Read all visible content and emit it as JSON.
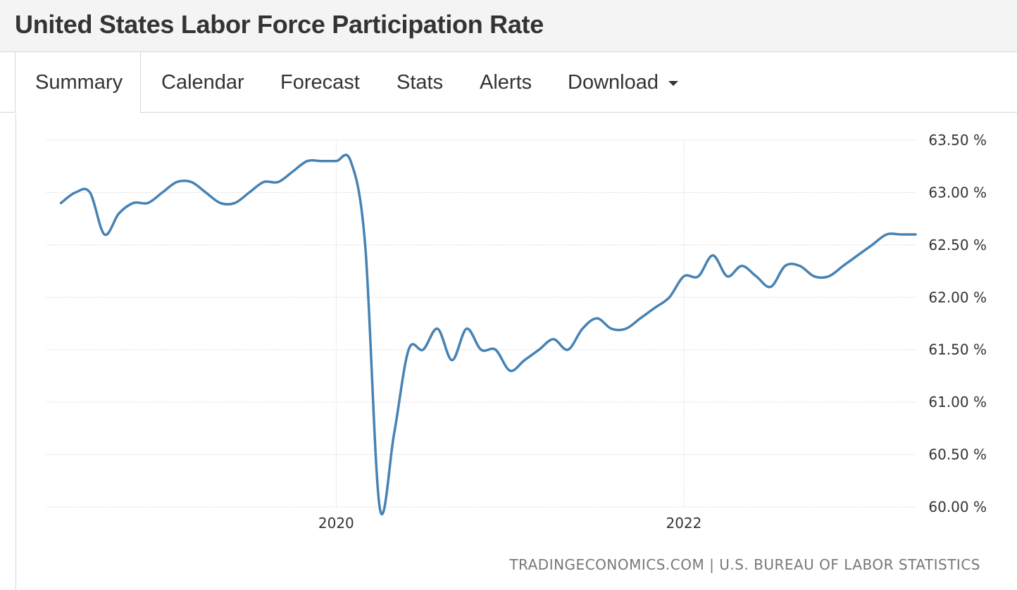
{
  "header": {
    "title": "United States Labor Force Participation Rate"
  },
  "tabs": [
    {
      "label": "Summary",
      "active": true
    },
    {
      "label": "Calendar"
    },
    {
      "label": "Forecast"
    },
    {
      "label": "Stats"
    },
    {
      "label": "Alerts"
    },
    {
      "label": "Download",
      "has_dropdown": true
    }
  ],
  "colors": {
    "line": "#4682b4",
    "grid": "#c8c8c8",
    "text": "#333333"
  },
  "chart_data": {
    "type": "line",
    "title": "",
    "xlabel": "",
    "ylabel": "",
    "ylim": [
      60.0,
      63.5
    ],
    "yticks": [
      60.0,
      60.5,
      61.0,
      61.5,
      62.0,
      62.5,
      63.0,
      63.5
    ],
    "ytick_labels": [
      "60.00 %",
      "60.50 %",
      "61.00 %",
      "61.50 %",
      "62.00 %",
      "62.50 %",
      "63.00 %",
      "63.50 %"
    ],
    "xlim": [
      "2018-05",
      "2023-05"
    ],
    "xticks": [
      "2020-01",
      "2022-01"
    ],
    "xtick_labels": [
      "2020",
      "2022"
    ],
    "grid": true,
    "series": [
      {
        "name": "",
        "x": [
          "2018-06",
          "2018-07",
          "2018-08",
          "2018-09",
          "2018-10",
          "2018-11",
          "2018-12",
          "2019-01",
          "2019-02",
          "2019-03",
          "2019-04",
          "2019-05",
          "2019-06",
          "2019-07",
          "2019-08",
          "2019-09",
          "2019-10",
          "2019-11",
          "2019-12",
          "2020-01",
          "2020-02",
          "2020-03",
          "2020-04",
          "2020-05",
          "2020-06",
          "2020-07",
          "2020-08",
          "2020-09",
          "2020-10",
          "2020-11",
          "2020-12",
          "2021-01",
          "2021-02",
          "2021-03",
          "2021-04",
          "2021-05",
          "2021-06",
          "2021-07",
          "2021-08",
          "2021-09",
          "2021-10",
          "2021-11",
          "2021-12",
          "2022-01",
          "2022-02",
          "2022-03",
          "2022-04",
          "2022-05",
          "2022-06",
          "2022-07",
          "2022-08",
          "2022-09",
          "2022-10",
          "2022-11",
          "2022-12",
          "2023-01",
          "2023-02",
          "2023-03",
          "2023-04",
          "2023-05"
        ],
        "values": [
          62.9,
          63.0,
          63.0,
          62.6,
          62.8,
          62.9,
          62.9,
          63.0,
          63.1,
          63.1,
          63.0,
          62.9,
          62.9,
          63.0,
          63.1,
          63.1,
          63.2,
          63.3,
          63.3,
          63.3,
          63.3,
          62.5,
          60.0,
          60.7,
          61.5,
          61.5,
          61.7,
          61.4,
          61.7,
          61.5,
          61.5,
          61.3,
          61.4,
          61.5,
          61.6,
          61.5,
          61.7,
          61.8,
          61.7,
          61.7,
          61.8,
          61.9,
          62.0,
          62.2,
          62.2,
          62.4,
          62.2,
          62.3,
          62.2,
          62.1,
          62.3,
          62.3,
          62.2,
          62.2,
          62.3,
          62.4,
          62.5,
          62.6,
          62.6,
          62.6
        ]
      }
    ],
    "source": "TRADINGECONOMICS.COM | U.S. BUREAU OF LABOR STATISTICS"
  }
}
